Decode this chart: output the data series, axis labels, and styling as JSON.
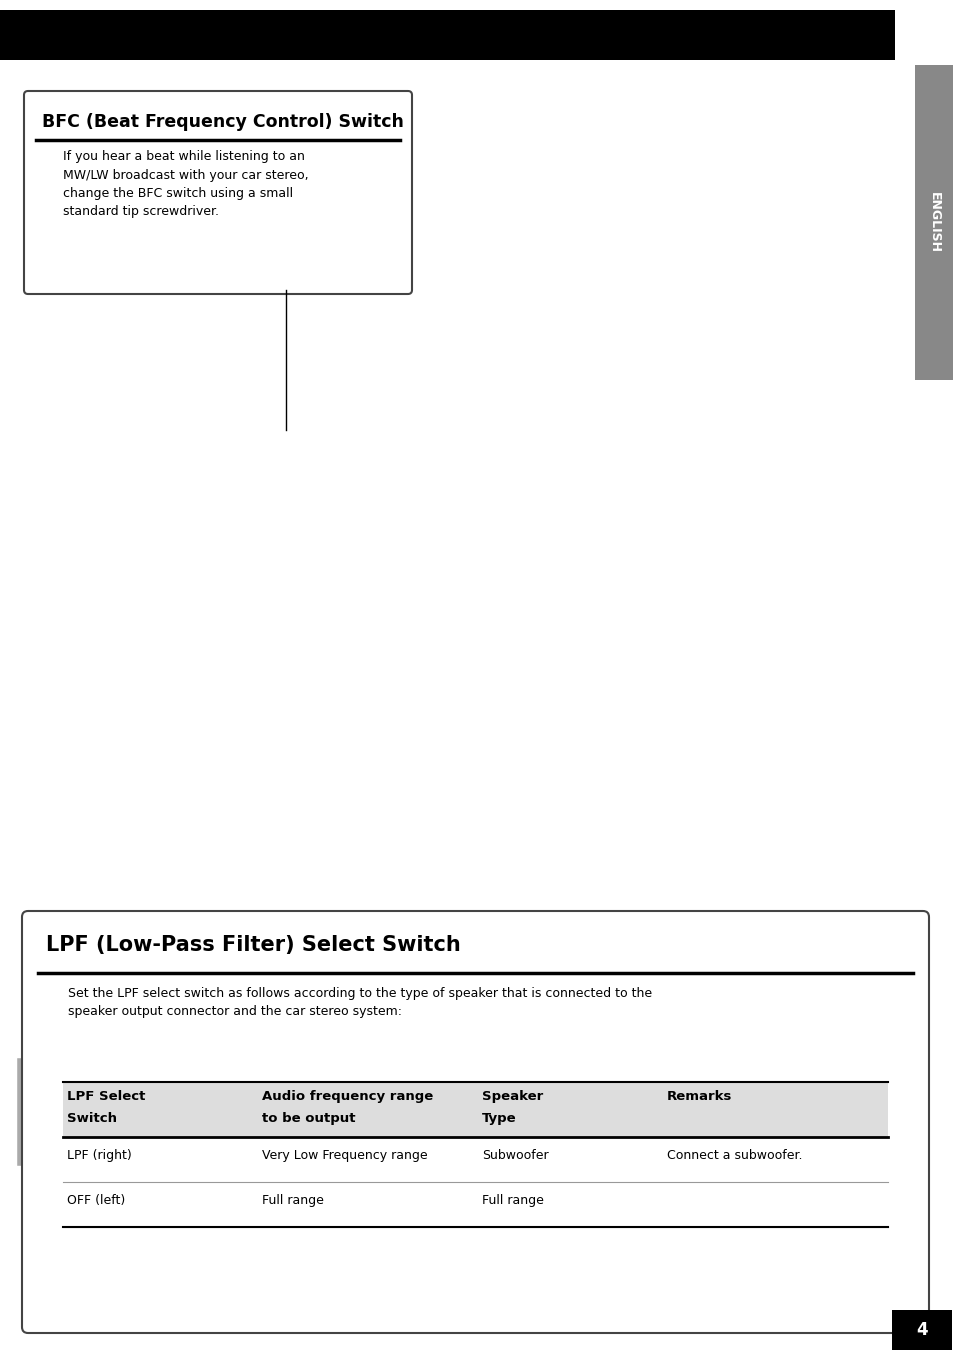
{
  "page_bg": "#ffffff",
  "header_bar_color": "#000000",
  "english_tab_color": "#888888",
  "english_tab_text": "ENGLISH",
  "page_number": "4",
  "page_number_bg": "#000000",
  "bfc_box_title": "BFC (Beat Frequency Control) Switch",
  "bfc_box_text": "If you hear a beat while listening to an\nMW/LW broadcast with your car stereo,\nchange the BFC switch using a small\nstandard tip screwdriver.",
  "lpf_box_title": "LPF (Low-Pass Filter) Select Switch",
  "lpf_box_text": "Set the LPF select switch as follows according to the type of speaker that is connected to the\nspeaker output connector and the car stereo system:",
  "table_header_col1_line1": "LPF Select",
  "table_header_col1_line2": "Switch",
  "table_header_col2_line1": "Audio frequency range",
  "table_header_col2_line2": "to be output",
  "table_header_col3_line1": "Speaker",
  "table_header_col3_line2": "Type",
  "table_header_col4": "Remarks",
  "table_rows": [
    [
      "LPF (right)",
      "Very Low Frequency range",
      "Subwoofer",
      "Connect a subwoofer."
    ],
    [
      "OFF (left)",
      "Full range",
      "Full range",
      ""
    ]
  ],
  "table_header_bg": "#dddddd"
}
